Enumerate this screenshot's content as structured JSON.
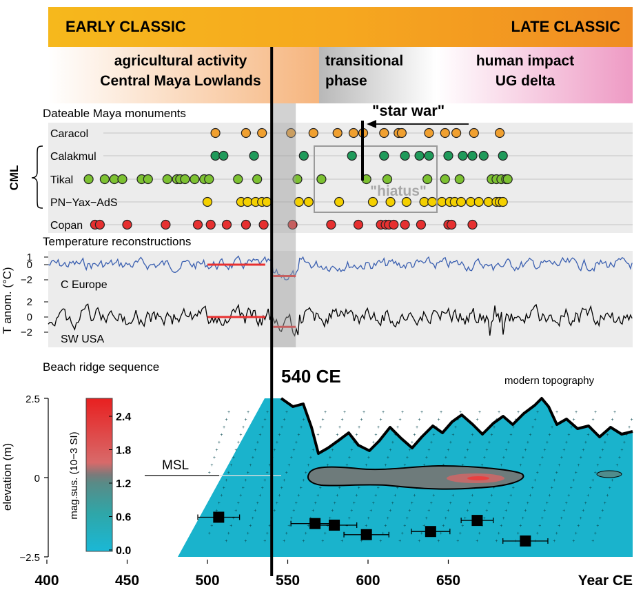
{
  "chart_data": {
    "type": "scatter",
    "x_axis": {
      "label": "Year CE",
      "range": [
        400,
        920
      ],
      "ticks": [
        400,
        450,
        500,
        550,
        600,
        650
      ]
    },
    "periods": {
      "early": "EARLY CLASSIC",
      "late": "LATE CLASSIC",
      "early_from": 400,
      "early_to": 540,
      "late_from": 540,
      "late_to": 920
    },
    "phases": [
      {
        "lines": [
          "agricultural activity",
          "Central Maya Lowlands"
        ],
        "from": 400,
        "to": 540
      },
      {
        "lines": [
          "transitional",
          "phase"
        ],
        "from": 540,
        "to": 600
      },
      {
        "lines": [
          "human impact",
          "UG delta"
        ],
        "from": 600,
        "to": 920
      }
    ],
    "event": {
      "year": 540,
      "label": "540 CE"
    },
    "shaded_interval": [
      540,
      555
    ],
    "monuments": {
      "title": "Dateable Maya monuments",
      "group_label": "CML",
      "hiatus_label": "\"hiatus\"",
      "hiatus_range": [
        540,
        580
      ],
      "star_war": {
        "label": "\"star war\"",
        "year": 564
      },
      "sites": [
        {
          "name": "Caracol",
          "color": "#f0a030",
          "years": [
            505,
            524,
            534,
            552,
            566,
            581,
            591,
            597,
            610,
            619,
            621,
            638,
            648,
            655,
            666,
            682
          ]
        },
        {
          "name": "Calakmul",
          "color": "#1f9a5a",
          "years": [
            505,
            510,
            529,
            560,
            590,
            610,
            623,
            632,
            638,
            650,
            659,
            665,
            672,
            684
          ]
        },
        {
          "name": "Tikal",
          "color": "#7dc232",
          "years": [
            426,
            436,
            442,
            447,
            459,
            463,
            475,
            481,
            483,
            486,
            492,
            498,
            501,
            519,
            531,
            556,
            571,
            599,
            612,
            637,
            648,
            657,
            677,
            680,
            683,
            686,
            687
          ]
        },
        {
          "name": "PN−Yax−AdS",
          "color": "#f4d000",
          "years": [
            500,
            521,
            525,
            530,
            534,
            537,
            557,
            563,
            582,
            603,
            614,
            624,
            635,
            640,
            646,
            651,
            654,
            658,
            664,
            669,
            675,
            680,
            682,
            684
          ]
        },
        {
          "name": "Copan",
          "color": "#e63030",
          "years": [
            430,
            433,
            450,
            474,
            494,
            502,
            512,
            524,
            535,
            553,
            577,
            594,
            608,
            611,
            613,
            616,
            623,
            633,
            650,
            652,
            665
          ]
        }
      ]
    },
    "temperature": {
      "title": "Temperature reconstructions",
      "ylabel": "T anom. (°C)",
      "series": [
        {
          "name": "C Europe",
          "color": "#3a5fb0",
          "yticks": [
            -2,
            0,
            1
          ],
          "pre_mean": 0,
          "post_mean": -1.5,
          "pre_range": [
            500,
            536
          ],
          "post_range": [
            541,
            555
          ]
        },
        {
          "name": "SW USA",
          "color": "#000000",
          "yticks": [
            -2,
            0,
            2
          ],
          "pre_mean": 0,
          "post_mean": -1.3,
          "pre_range": [
            500,
            536
          ],
          "post_range": [
            541,
            555
          ]
        }
      ]
    },
    "beach_ridge": {
      "title": "Beach ridge sequence",
      "ylabel": "elevation (m)",
      "yticks": [
        2.5,
        0,
        -2.5
      ],
      "ylim": [
        -2.5,
        2.5
      ],
      "msl_label": "MSL",
      "topography_label": "modern topography",
      "colorbar": {
        "label": "mag.sus. (10−3 SI)",
        "ticks": [
          "2.4",
          "1.8",
          "1.2",
          "0.6",
          "0.0"
        ]
      },
      "dated_samples": [
        {
          "year": 507,
          "elevation": -1.25,
          "err": 13
        },
        {
          "year": 567,
          "elevation": -1.45,
          "err": 15
        },
        {
          "year": 579,
          "elevation": -1.5,
          "err": 14
        },
        {
          "year": 599,
          "elevation": -1.8,
          "err": 14
        },
        {
          "year": 639,
          "elevation": -1.7,
          "err": 12
        },
        {
          "year": 668,
          "elevation": -1.35,
          "err": 10
        },
        {
          "year": 698,
          "elevation": -2.0,
          "err": 14
        }
      ]
    }
  }
}
